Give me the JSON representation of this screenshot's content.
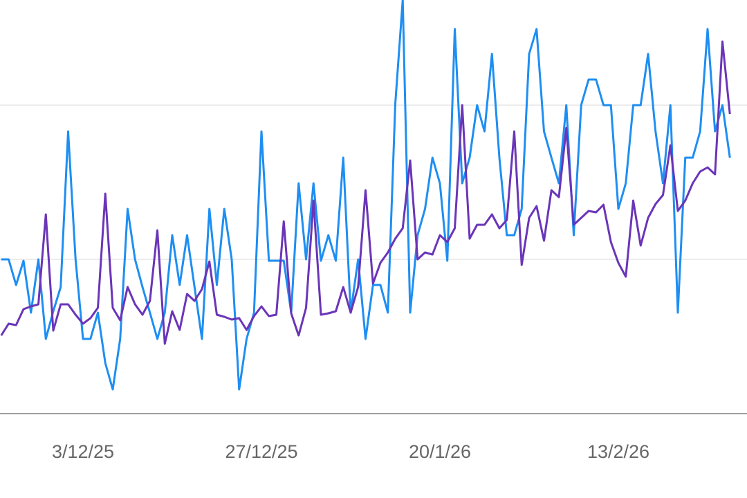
{
  "chart_data": {
    "type": "line",
    "categories": [
      null,
      null,
      null,
      null,
      null,
      null,
      null,
      null,
      null,
      null,
      null,
      "3/12/25",
      null,
      null,
      null,
      null,
      null,
      null,
      null,
      null,
      null,
      null,
      null,
      null,
      null,
      null,
      null,
      null,
      null,
      null,
      null,
      null,
      null,
      null,
      null,
      "27/12/25",
      null,
      null,
      null,
      null,
      null,
      null,
      null,
      null,
      null,
      null,
      null,
      null,
      null,
      null,
      null,
      null,
      null,
      null,
      null,
      null,
      null,
      null,
      null,
      "20/1/26",
      null,
      null,
      null,
      null,
      null,
      null,
      null,
      null,
      null,
      null,
      null,
      null,
      null,
      null,
      null,
      null,
      null,
      null,
      null,
      null,
      null,
      null,
      null,
      "13/2/26",
      null,
      null,
      null,
      null,
      null,
      null,
      null,
      null,
      null,
      null,
      null,
      null,
      null,
      null,
      null
    ],
    "series": [
      {
        "color": "#1e8ef2",
        "values": [
          223,
          223,
          186,
          221,
          146,
          223,
          108,
          148,
          183,
          408,
          223,
          108,
          108,
          146,
          73,
          35,
          108,
          296,
          223,
          183,
          146,
          108,
          146,
          258,
          186,
          258,
          183,
          108,
          296,
          186,
          296,
          223,
          35,
          108,
          146,
          408,
          221,
          221,
          221,
          146,
          333,
          223,
          333,
          221,
          258,
          221,
          370,
          146,
          223,
          108,
          186,
          186,
          146,
          448,
          598,
          146,
          258,
          296,
          370,
          333,
          221,
          556,
          333,
          370,
          446,
          408,
          520,
          370,
          258,
          258,
          296,
          520,
          556,
          408,
          370,
          333,
          446,
          258,
          446,
          483,
          483,
          446,
          446,
          296,
          333,
          446,
          446,
          520,
          408,
          333,
          446,
          146,
          370,
          370,
          408,
          556,
          408,
          446,
          370
        ]
      },
      {
        "color": "#6a35b8",
        "values": [
          113,
          130,
          128,
          151,
          155,
          158,
          288,
          120,
          158,
          158,
          143,
          130,
          138,
          153,
          318,
          153,
          135,
          183,
          158,
          143,
          163,
          265,
          101,
          148,
          121,
          173,
          163,
          180,
          220,
          143,
          140,
          136,
          138,
          121,
          141,
          155,
          141,
          143,
          278,
          145,
          113,
          153,
          308,
          143,
          145,
          148,
          183,
          146,
          183,
          323,
          188,
          218,
          233,
          253,
          268,
          366,
          223,
          233,
          230,
          258,
          248,
          268,
          446,
          253,
          273,
          273,
          288,
          268,
          280,
          408,
          215,
          283,
          300,
          250,
          323,
          313,
          413,
          273,
          283,
          293,
          291,
          302,
          248,
          218,
          198,
          308,
          243,
          283,
          303,
          316,
          388,
          293,
          308,
          333,
          350,
          356,
          346,
          538,
          433
        ]
      }
    ],
    "ylim": [
      0,
      598
    ],
    "ygrid": [
      223,
      446
    ]
  }
}
